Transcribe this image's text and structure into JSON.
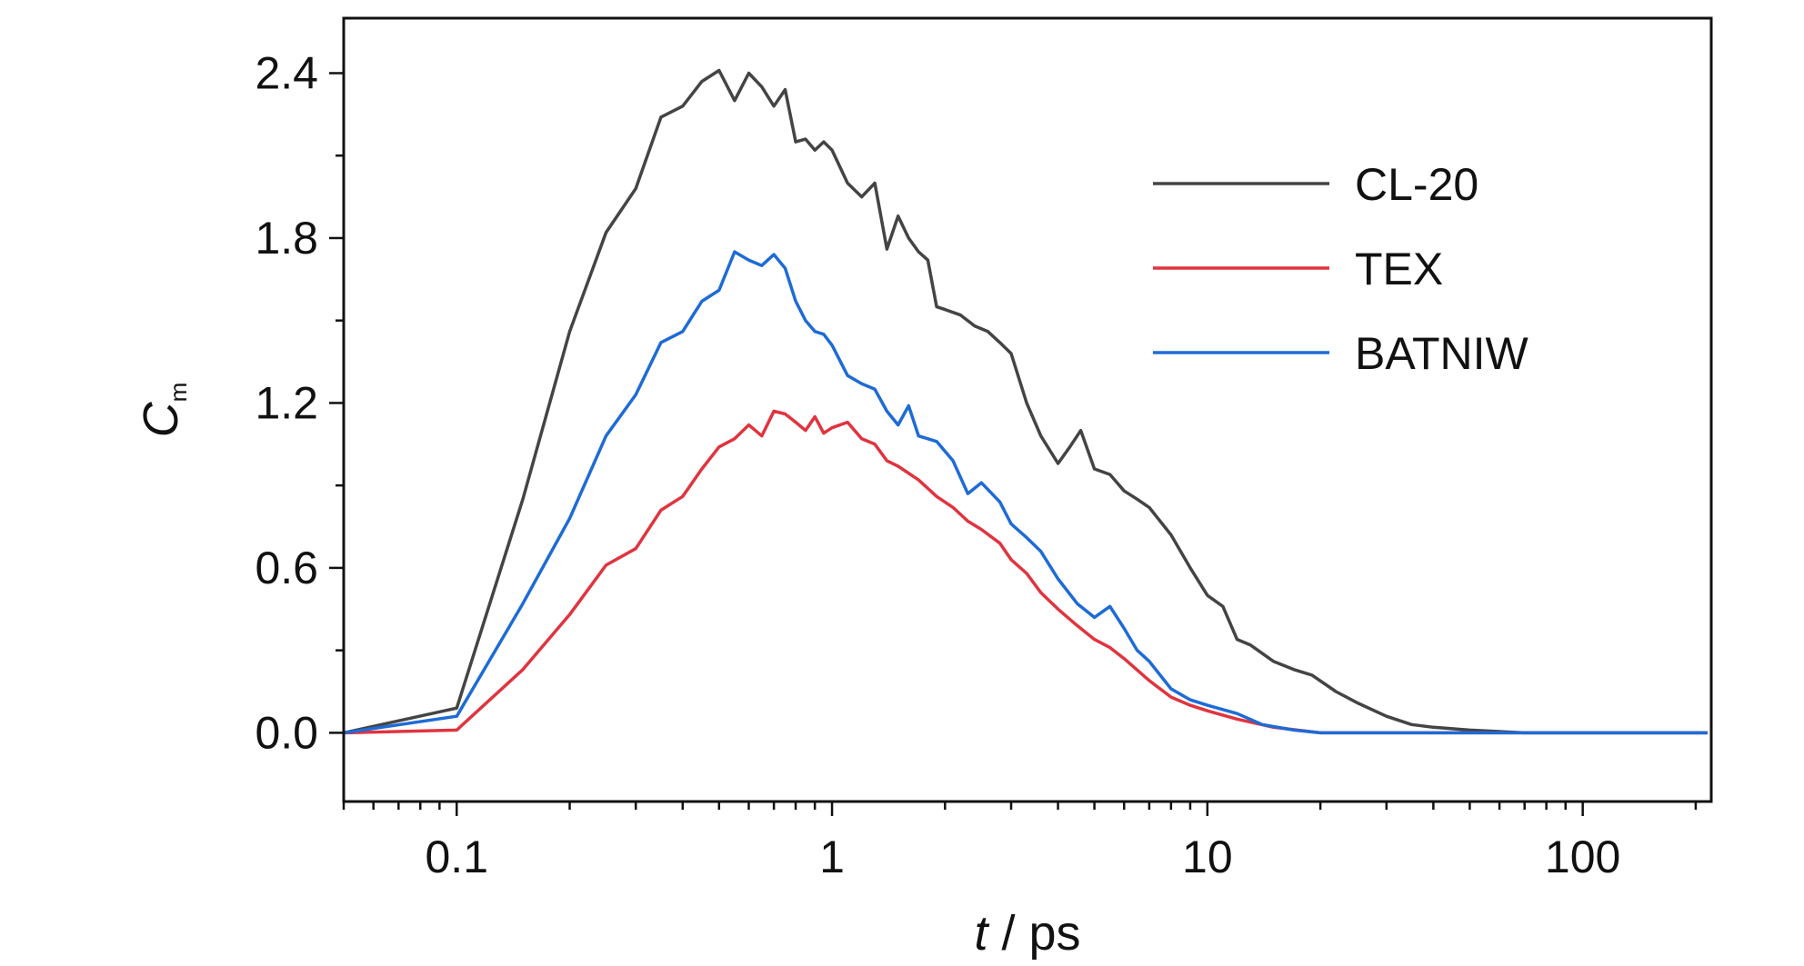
{
  "chart_data": {
    "type": "line",
    "x_scale": "log",
    "xlim": [
      0.05,
      220
    ],
    "ylim": [
      -0.25,
      2.6
    ],
    "x_ticks": [
      {
        "value": 0.1,
        "label": "0.1"
      },
      {
        "value": 1,
        "label": "1"
      },
      {
        "value": 10,
        "label": "10"
      },
      {
        "value": 100,
        "label": "100"
      }
    ],
    "y_ticks": [
      {
        "value": 0.0,
        "label": "0.0"
      },
      {
        "value": 0.6,
        "label": "0.6"
      },
      {
        "value": 1.2,
        "label": "1.2"
      },
      {
        "value": 1.8,
        "label": "1.8"
      },
      {
        "value": 2.4,
        "label": "2.4"
      }
    ],
    "xlabel": {
      "italic": "t",
      "rest": " / ps"
    },
    "ylabel": {
      "main": "C",
      "sub": "m"
    },
    "grid": false,
    "legend_position": "top-right",
    "series": [
      {
        "name": "CL-20",
        "color": "#444444",
        "points": [
          [
            0.05,
            0
          ],
          [
            0.1,
            0.09
          ],
          [
            0.15,
            0.85
          ],
          [
            0.2,
            1.46
          ],
          [
            0.25,
            1.82
          ],
          [
            0.3,
            1.98
          ],
          [
            0.35,
            2.24
          ],
          [
            0.4,
            2.28
          ],
          [
            0.45,
            2.37
          ],
          [
            0.5,
            2.41
          ],
          [
            0.55,
            2.3
          ],
          [
            0.6,
            2.4
          ],
          [
            0.65,
            2.35
          ],
          [
            0.7,
            2.28
          ],
          [
            0.75,
            2.34
          ],
          [
            0.8,
            2.15
          ],
          [
            0.85,
            2.16
          ],
          [
            0.9,
            2.12
          ],
          [
            0.95,
            2.15
          ],
          [
            1.0,
            2.12
          ],
          [
            1.1,
            2.0
          ],
          [
            1.2,
            1.95
          ],
          [
            1.3,
            2.0
          ],
          [
            1.4,
            1.76
          ],
          [
            1.5,
            1.88
          ],
          [
            1.6,
            1.8
          ],
          [
            1.7,
            1.75
          ],
          [
            1.8,
            1.72
          ],
          [
            1.9,
            1.55
          ],
          [
            2.0,
            1.54
          ],
          [
            2.2,
            1.52
          ],
          [
            2.4,
            1.48
          ],
          [
            2.6,
            1.46
          ],
          [
            2.8,
            1.42
          ],
          [
            3.0,
            1.38
          ],
          [
            3.3,
            1.2
          ],
          [
            3.6,
            1.08
          ],
          [
            4.0,
            0.98
          ],
          [
            4.3,
            1.04
          ],
          [
            4.6,
            1.1
          ],
          [
            5.0,
            0.96
          ],
          [
            5.5,
            0.94
          ],
          [
            6.0,
            0.88
          ],
          [
            6.5,
            0.85
          ],
          [
            7.0,
            0.82
          ],
          [
            8.0,
            0.72
          ],
          [
            9.0,
            0.6
          ],
          [
            10.0,
            0.5
          ],
          [
            11.0,
            0.46
          ],
          [
            12.0,
            0.34
          ],
          [
            13.0,
            0.32
          ],
          [
            15.0,
            0.26
          ],
          [
            17.0,
            0.23
          ],
          [
            19.0,
            0.21
          ],
          [
            22.0,
            0.15
          ],
          [
            25.0,
            0.11
          ],
          [
            30.0,
            0.06
          ],
          [
            35.0,
            0.03
          ],
          [
            40.0,
            0.02
          ],
          [
            50.0,
            0.01
          ],
          [
            70.0,
            0.0
          ],
          [
            100.0,
            0.0
          ],
          [
            215.0,
            0.0
          ]
        ]
      },
      {
        "name": "TEX",
        "color": "#e0343f",
        "points": [
          [
            0.05,
            0
          ],
          [
            0.1,
            0.01
          ],
          [
            0.15,
            0.23
          ],
          [
            0.2,
            0.43
          ],
          [
            0.25,
            0.61
          ],
          [
            0.3,
            0.67
          ],
          [
            0.35,
            0.81
          ],
          [
            0.4,
            0.86
          ],
          [
            0.45,
            0.96
          ],
          [
            0.5,
            1.04
          ],
          [
            0.55,
            1.07
          ],
          [
            0.6,
            1.12
          ],
          [
            0.65,
            1.08
          ],
          [
            0.7,
            1.17
          ],
          [
            0.75,
            1.16
          ],
          [
            0.8,
            1.13
          ],
          [
            0.85,
            1.1
          ],
          [
            0.9,
            1.15
          ],
          [
            0.95,
            1.09
          ],
          [
            1.0,
            1.11
          ],
          [
            1.1,
            1.13
          ],
          [
            1.2,
            1.07
          ],
          [
            1.3,
            1.05
          ],
          [
            1.4,
            0.99
          ],
          [
            1.5,
            0.97
          ],
          [
            1.7,
            0.92
          ],
          [
            1.9,
            0.86
          ],
          [
            2.1,
            0.82
          ],
          [
            2.3,
            0.77
          ],
          [
            2.5,
            0.74
          ],
          [
            2.8,
            0.69
          ],
          [
            3.0,
            0.63
          ],
          [
            3.3,
            0.58
          ],
          [
            3.6,
            0.51
          ],
          [
            4.0,
            0.45
          ],
          [
            4.5,
            0.39
          ],
          [
            5.0,
            0.34
          ],
          [
            5.5,
            0.31
          ],
          [
            6.0,
            0.27
          ],
          [
            7.0,
            0.19
          ],
          [
            8.0,
            0.13
          ],
          [
            9.0,
            0.1
          ],
          [
            10.0,
            0.08
          ],
          [
            12.0,
            0.05
          ],
          [
            15.0,
            0.02
          ],
          [
            20.0,
            0.0
          ],
          [
            30.0,
            0.0
          ],
          [
            100.0,
            0.0
          ],
          [
            215.0,
            0.0
          ]
        ]
      },
      {
        "name": "BATNIW",
        "color": "#1e6bd6",
        "points": [
          [
            0.05,
            0
          ],
          [
            0.1,
            0.06
          ],
          [
            0.15,
            0.47
          ],
          [
            0.2,
            0.78
          ],
          [
            0.25,
            1.08
          ],
          [
            0.3,
            1.23
          ],
          [
            0.35,
            1.42
          ],
          [
            0.4,
            1.46
          ],
          [
            0.45,
            1.57
          ],
          [
            0.5,
            1.61
          ],
          [
            0.55,
            1.75
          ],
          [
            0.6,
            1.72
          ],
          [
            0.65,
            1.7
          ],
          [
            0.7,
            1.74
          ],
          [
            0.75,
            1.69
          ],
          [
            0.8,
            1.57
          ],
          [
            0.85,
            1.5
          ],
          [
            0.9,
            1.46
          ],
          [
            0.95,
            1.45
          ],
          [
            1.0,
            1.41
          ],
          [
            1.1,
            1.3
          ],
          [
            1.2,
            1.27
          ],
          [
            1.3,
            1.25
          ],
          [
            1.4,
            1.17
          ],
          [
            1.5,
            1.12
          ],
          [
            1.6,
            1.19
          ],
          [
            1.7,
            1.08
          ],
          [
            1.9,
            1.06
          ],
          [
            2.1,
            0.99
          ],
          [
            2.3,
            0.87
          ],
          [
            2.5,
            0.91
          ],
          [
            2.8,
            0.84
          ],
          [
            3.0,
            0.76
          ],
          [
            3.3,
            0.71
          ],
          [
            3.6,
            0.66
          ],
          [
            4.0,
            0.56
          ],
          [
            4.5,
            0.47
          ],
          [
            5.0,
            0.42
          ],
          [
            5.5,
            0.46
          ],
          [
            6.0,
            0.38
          ],
          [
            6.5,
            0.3
          ],
          [
            7.0,
            0.26
          ],
          [
            8.0,
            0.16
          ],
          [
            9.0,
            0.12
          ],
          [
            10.0,
            0.1
          ],
          [
            12.0,
            0.07
          ],
          [
            14.0,
            0.03
          ],
          [
            17.0,
            0.01
          ],
          [
            20.0,
            0.0
          ],
          [
            30.0,
            0.0
          ],
          [
            100.0,
            0.0
          ],
          [
            215.0,
            0.0
          ]
        ]
      }
    ]
  }
}
